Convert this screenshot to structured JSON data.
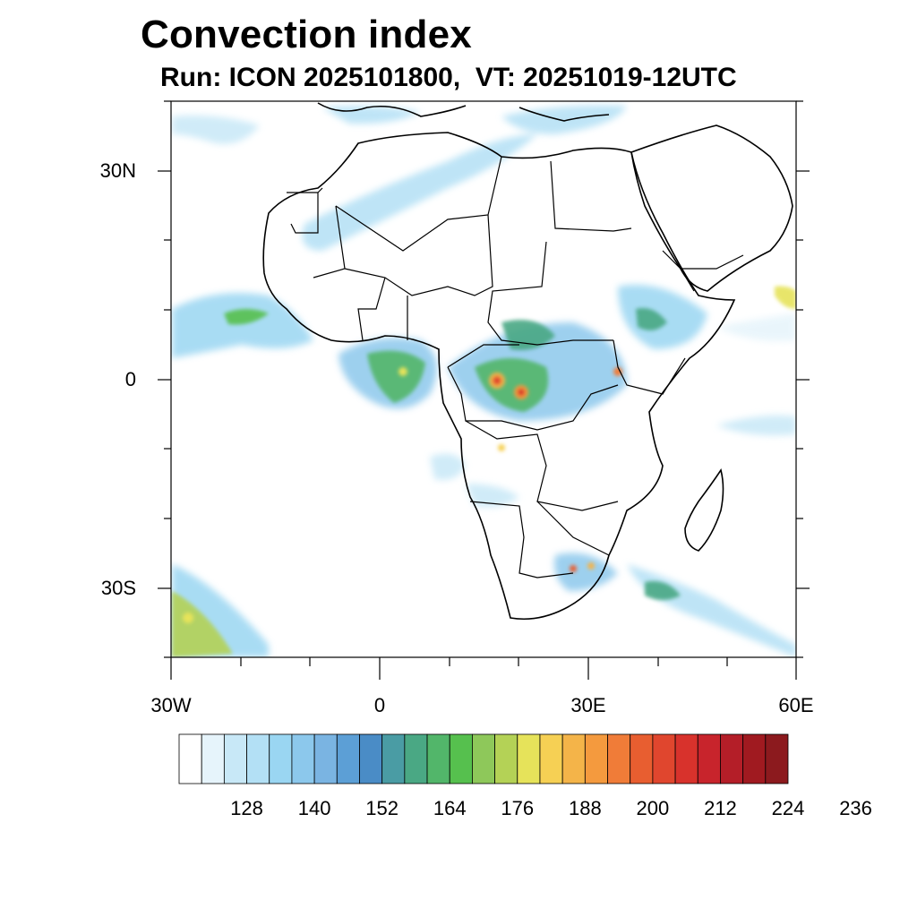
{
  "title": "Convection index",
  "subtitle": "Run: ICON 2025101800,  VT: 20251019-12UTC",
  "axes": {
    "lat_labels": [
      "30N",
      "0",
      "30S"
    ],
    "lon_labels": [
      "30W",
      "0",
      "30E",
      "60E"
    ]
  },
  "colorbar": {
    "labels": [
      "128",
      "140",
      "152",
      "164",
      "176",
      "188",
      "200",
      "212",
      "224",
      "236"
    ],
    "colors": [
      "#ffffff",
      "#e6f4fb",
      "#c8e8f7",
      "#b3e0f5",
      "#9ad6f2",
      "#8cc8ec",
      "#7ab4e2",
      "#5c9fd6",
      "#4a8cc6",
      "#4a9ca4",
      "#4aa884",
      "#52b66a",
      "#56c04e",
      "#8ec85a",
      "#b4d256",
      "#e6e35a",
      "#f6d054",
      "#f4b449",
      "#f49a3e",
      "#f07c38",
      "#e85e30",
      "#e0462e",
      "#d8322c",
      "#c8242c",
      "#b41e28",
      "#a01a20",
      "#8c1a1e"
    ]
  },
  "map": {
    "region": "Africa",
    "lon_range": [
      -30,
      60
    ],
    "lat_range": [
      -40,
      40
    ]
  }
}
